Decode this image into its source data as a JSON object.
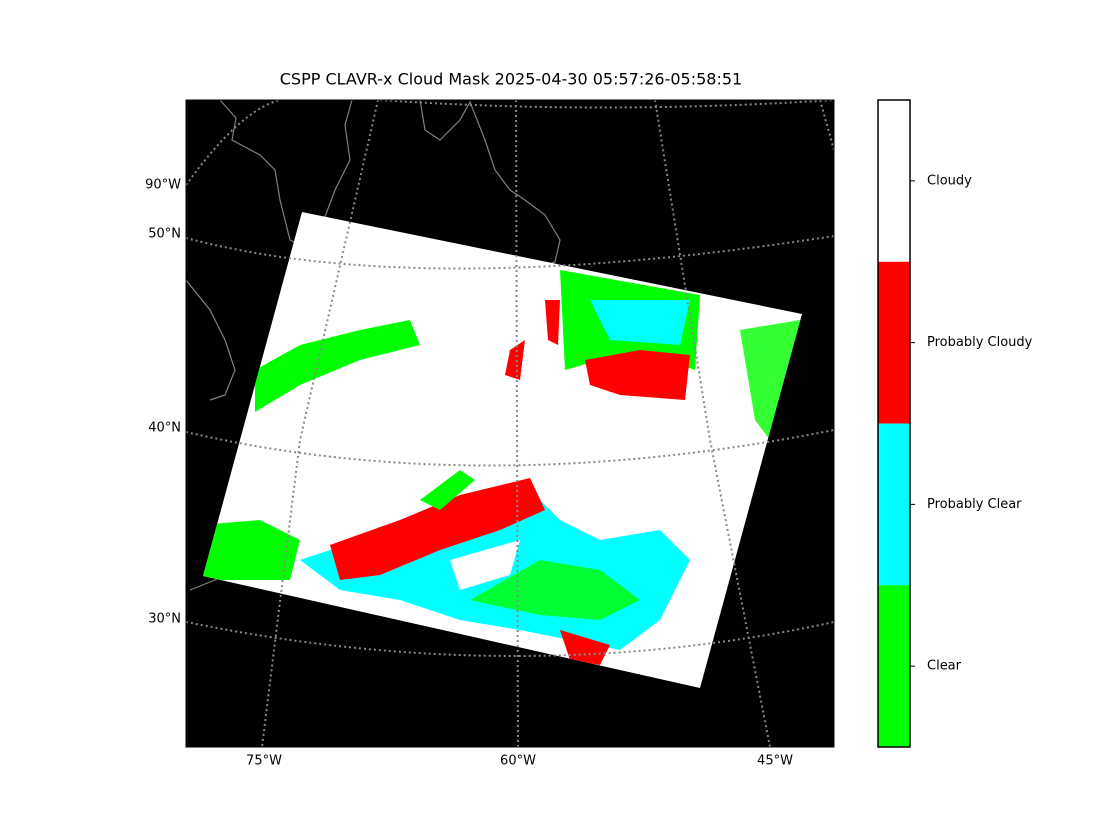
{
  "map": {
    "title": "CSPP CLAVR-x Cloud Mask 2025-04-30 05:57:26-05:58:51",
    "lat_labels": [
      "90°W",
      "50°N",
      "40°N",
      "30°N"
    ],
    "lon_labels": [
      "75°W",
      "60°W",
      "45°W"
    ],
    "colorbar": [
      {
        "label": "Cloudy",
        "color": "#ffffff"
      },
      {
        "label": "Probably Cloudy",
        "color": "#ff0000"
      },
      {
        "label": "Probably Clear",
        "color": "#00ffff"
      },
      {
        "label": "Clear",
        "color": "#00ff00"
      }
    ]
  }
}
